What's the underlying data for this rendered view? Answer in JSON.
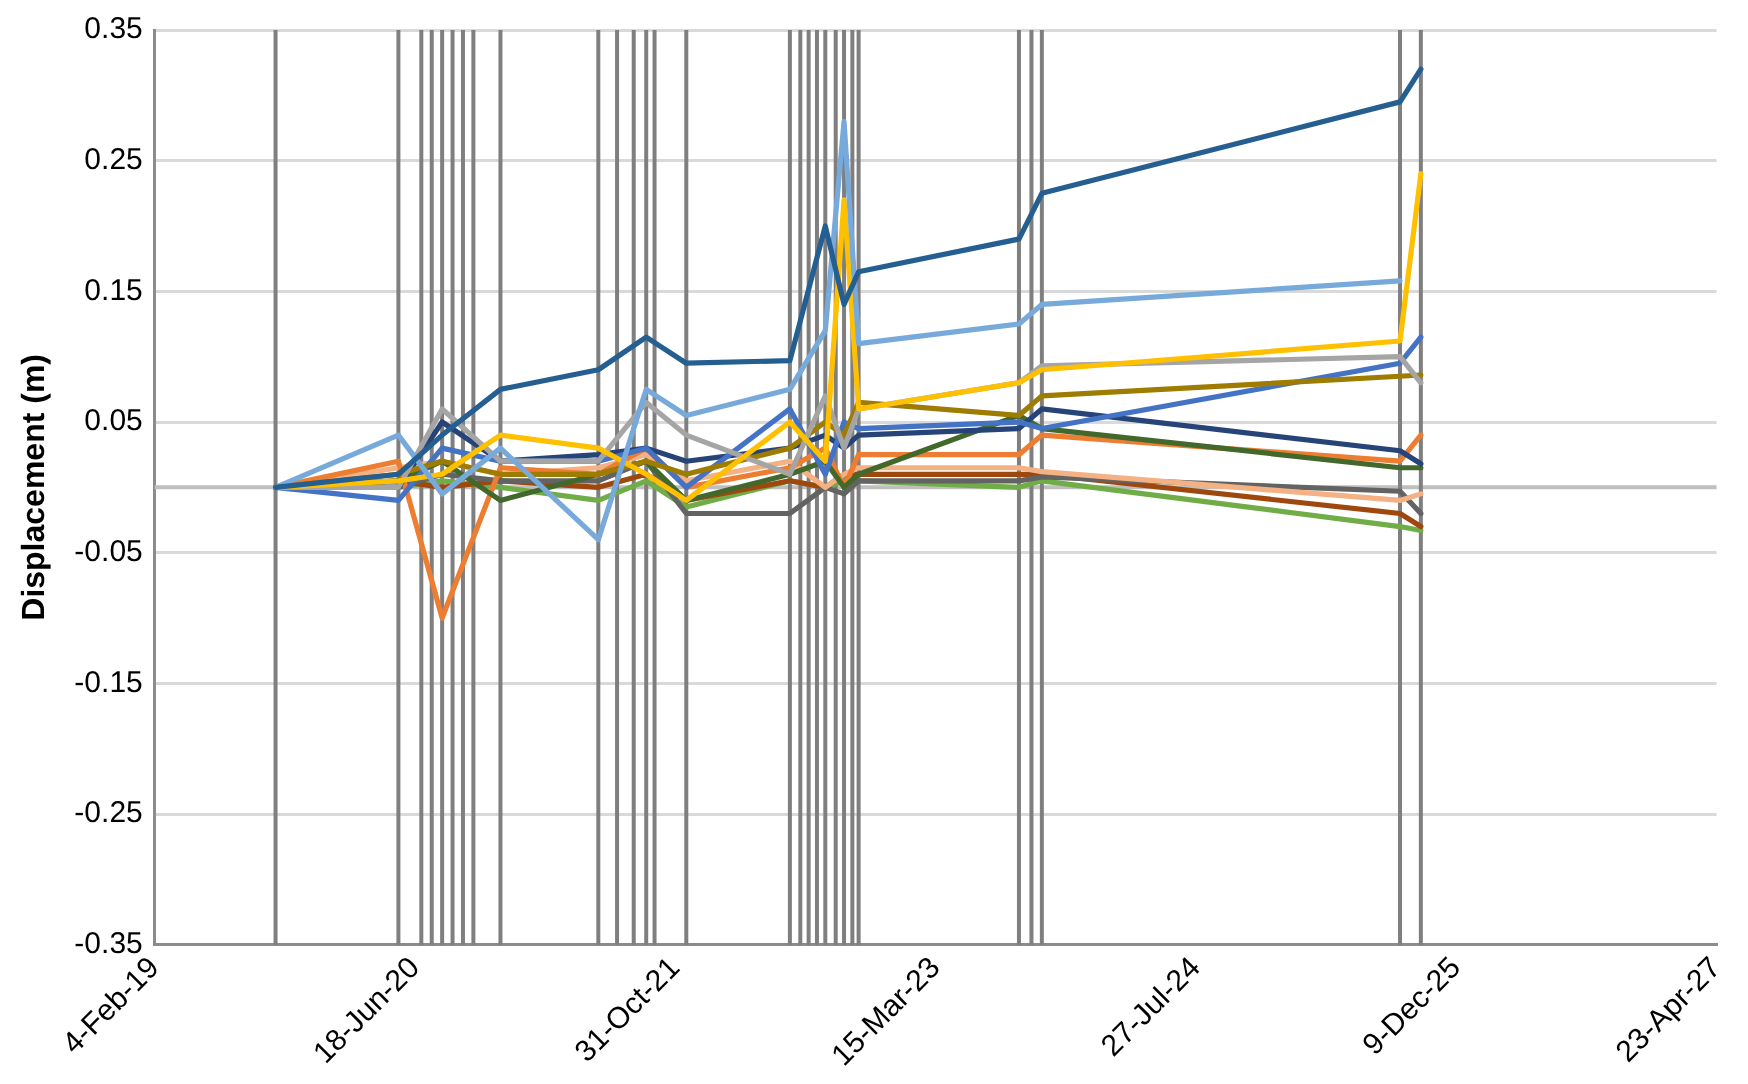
{
  "chart_data": {
    "type": "line",
    "ylabel": "Displacement (m)",
    "x": [
      "2019-09-24",
      "2020-05-17",
      "2020-08-09",
      "2020-11-29",
      "2021-06-05",
      "2021-09-05",
      "2021-11-21",
      "2022-06-08",
      "2022-08-15",
      "2022-09-20",
      "2022-10-18",
      "2023-08-22",
      "2023-10-05",
      "2025-08-23",
      "2025-10-02"
    ],
    "series": [
      {
        "color": "#255e91",
        "values": [
          0,
          0.01,
          0.04,
          0.075,
          0.09,
          0.115,
          0.095,
          0.097,
          0.2,
          0.14,
          0.165,
          0.19,
          0.225,
          0.295,
          0.32
        ]
      },
      {
        "color": "#77aadb",
        "values": [
          0,
          0.04,
          -0.005,
          0.03,
          -0.04,
          0.075,
          0.055,
          0.075,
          0.12,
          0.28,
          0.11,
          0.125,
          0.14,
          0.158,
          null
        ]
      },
      {
        "color": "#ffc000",
        "values": [
          0,
          0.005,
          0.01,
          0.04,
          0.03,
          0.01,
          -0.01,
          0.05,
          0.02,
          0.22,
          0.06,
          0.08,
          0.09,
          0.112,
          0.24
        ]
      },
      {
        "color": "#a5a5a5",
        "values": [
          0,
          0,
          0.06,
          0.02,
          0.02,
          0.065,
          0.04,
          0.01,
          0.07,
          0.03,
          0.06,
          0.08,
          0.093,
          0.1,
          0.08
        ]
      },
      {
        "color": "#9e7c00",
        "values": [
          0,
          0.01,
          0.02,
          0.01,
          0.01,
          0.02,
          0.01,
          0.03,
          0.05,
          0.04,
          0.065,
          0.055,
          0.07,
          0.085,
          0.086
        ]
      },
      {
        "color": "#4472c4",
        "values": [
          0,
          -0.01,
          0.03,
          0.02,
          0.02,
          0.03,
          0,
          0.06,
          0.01,
          0.05,
          0.045,
          0.05,
          0.045,
          0.095,
          0.115
        ]
      },
      {
        "color": "#264478",
        "values": [
          0,
          0,
          0.05,
          0.02,
          0.025,
          0.03,
          0.02,
          0.03,
          0.04,
          0.03,
          0.04,
          0.045,
          0.06,
          0.028,
          0.018
        ]
      },
      {
        "color": "#43682b",
        "values": [
          0,
          0.005,
          0.02,
          -0.01,
          0.01,
          0.02,
          -0.01,
          0.01,
          0.02,
          0,
          0.01,
          0.055,
          0.045,
          0.015,
          0.015
        ]
      },
      {
        "color": "#ed7d31",
        "values": [
          0,
          0.02,
          -0.1,
          0.015,
          0.01,
          0.03,
          0,
          0.015,
          0.03,
          0,
          0.025,
          0.025,
          0.04,
          0.02,
          0.04
        ]
      },
      {
        "color": "#f4b183",
        "values": [
          0,
          0.015,
          0.02,
          0.01,
          0.015,
          0.025,
          0.005,
          0.02,
          0,
          0.01,
          0.015,
          0.015,
          0.012,
          -0.01,
          -0.005
        ]
      },
      {
        "color": "#636363",
        "values": [
          0,
          0,
          0.01,
          0.005,
          0.005,
          0.02,
          -0.02,
          -0.02,
          0,
          -0.005,
          0.005,
          0.005,
          0.008,
          -0.003,
          -0.02
        ]
      },
      {
        "color": "#9e480e",
        "values": [
          0,
          0.005,
          0,
          0.005,
          0,
          0.01,
          -0.01,
          0.005,
          0,
          0.01,
          0.01,
          0.01,
          0.01,
          -0.02,
          -0.03
        ]
      },
      {
        "color": "#70ad47",
        "values": [
          0,
          0,
          0.005,
          0,
          -0.01,
          0.005,
          -0.015,
          0.005,
          0,
          0.005,
          0.005,
          0,
          0.005,
          -0.03,
          -0.033
        ]
      }
    ],
    "xlim": [
      "2019-02-04",
      "2027-04-23"
    ],
    "xticks": [
      {
        "value": "2019-02-04",
        "label": "4-Feb-19"
      },
      {
        "value": "2020-06-18",
        "label": "18-Jun-20"
      },
      {
        "value": "2021-10-31",
        "label": "31-Oct-21"
      },
      {
        "value": "2023-03-15",
        "label": "15-Mar-23"
      },
      {
        "value": "2024-07-27",
        "label": "27-Jul-24"
      },
      {
        "value": "2025-12-09",
        "label": "9-Dec-25"
      },
      {
        "value": "2027-04-23",
        "label": "23-Apr-27"
      }
    ],
    "ylim": [
      -0.35,
      0.35
    ],
    "yticks": [
      -0.35,
      -0.25,
      -0.15,
      -0.05,
      0.05,
      0.15,
      0.25,
      0.35
    ],
    "grid": "y",
    "legend": false,
    "ref_lines": [
      {
        "axis": "y",
        "value": 0,
        "color": "#bfbfbf"
      },
      {
        "axis": "x",
        "value": "2019-09-24",
        "color": "#7f7f7f"
      },
      {
        "axis": "x",
        "value": "2020-05-17",
        "color": "#7f7f7f"
      },
      {
        "axis": "x",
        "value": "2020-06-30",
        "color": "#7f7f7f"
      },
      {
        "axis": "x",
        "value": "2020-07-20",
        "color": "#7f7f7f"
      },
      {
        "axis": "x",
        "value": "2020-08-09",
        "color": "#7f7f7f"
      },
      {
        "axis": "x",
        "value": "2020-08-29",
        "color": "#7f7f7f"
      },
      {
        "axis": "x",
        "value": "2020-09-18",
        "color": "#7f7f7f"
      },
      {
        "axis": "x",
        "value": "2020-10-08",
        "color": "#7f7f7f"
      },
      {
        "axis": "x",
        "value": "2020-11-29",
        "color": "#7f7f7f"
      },
      {
        "axis": "x",
        "value": "2021-06-05",
        "color": "#7f7f7f"
      },
      {
        "axis": "x",
        "value": "2021-07-11",
        "color": "#7f7f7f"
      },
      {
        "axis": "x",
        "value": "2021-08-12",
        "color": "#7f7f7f"
      },
      {
        "axis": "x",
        "value": "2021-09-05",
        "color": "#7f7f7f"
      },
      {
        "axis": "x",
        "value": "2021-09-21",
        "color": "#7f7f7f"
      },
      {
        "axis": "x",
        "value": "2021-11-21",
        "color": "#7f7f7f"
      },
      {
        "axis": "x",
        "value": "2022-06-08",
        "color": "#7f7f7f"
      },
      {
        "axis": "x",
        "value": "2022-06-28",
        "color": "#7f7f7f"
      },
      {
        "axis": "x",
        "value": "2022-07-14",
        "color": "#7f7f7f"
      },
      {
        "axis": "x",
        "value": "2022-07-30",
        "color": "#7f7f7f"
      },
      {
        "axis": "x",
        "value": "2022-08-15",
        "color": "#7f7f7f"
      },
      {
        "axis": "x",
        "value": "2022-09-04",
        "color": "#7f7f7f"
      },
      {
        "axis": "x",
        "value": "2022-09-20",
        "color": "#7f7f7f"
      },
      {
        "axis": "x",
        "value": "2022-10-06",
        "color": "#7f7f7f"
      },
      {
        "axis": "x",
        "value": "2022-10-18",
        "color": "#7f7f7f"
      },
      {
        "axis": "x",
        "value": "2023-08-22",
        "color": "#7f7f7f"
      },
      {
        "axis": "x",
        "value": "2023-09-15",
        "color": "#7f7f7f"
      },
      {
        "axis": "x",
        "value": "2023-10-05",
        "color": "#7f7f7f"
      },
      {
        "axis": "x",
        "value": "2025-08-23",
        "color": "#7f7f7f"
      },
      {
        "axis": "x",
        "value": "2025-10-02",
        "color": "#7f7f7f"
      }
    ]
  }
}
